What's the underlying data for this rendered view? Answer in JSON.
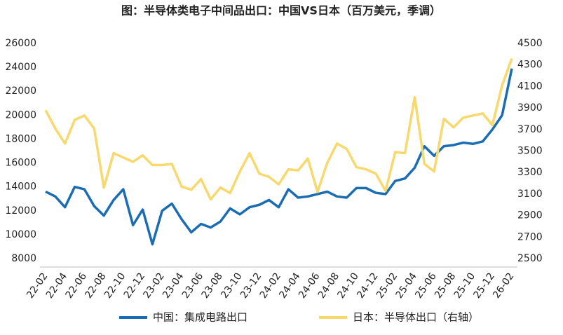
{
  "chart_data": {
    "type": "line",
    "title": "图：半导体类电子中间品出口：中国VS日本（百万美元，季调）",
    "categories": [
      "22-02",
      null,
      "22-04",
      null,
      "22-06",
      null,
      "22-08",
      null,
      "22-10",
      null,
      "22-12",
      null,
      "23-02",
      null,
      "23-04",
      null,
      "23-06",
      null,
      "23-08",
      null,
      "23-10",
      null,
      "23-12",
      null,
      "24-02",
      null,
      "24-04",
      null,
      "24-06",
      null,
      "24-08",
      null,
      "24-10",
      null,
      "24-12",
      null,
      "25-02",
      null,
      "25-04",
      null,
      "25-06",
      null,
      "25-08",
      null,
      "25-10",
      null,
      "25-12",
      null,
      "26-02"
    ],
    "series": [
      {
        "name": "中国：集成电路出口",
        "color": "#1a6db3",
        "axis": "y",
        "values": [
          13600,
          13200,
          12300,
          14000,
          13800,
          12400,
          11600,
          12900,
          13800,
          10800,
          12100,
          9200,
          12000,
          12600,
          11300,
          10200,
          10900,
          10600,
          11100,
          12200,
          11700,
          12300,
          12500,
          12900,
          12300,
          13800,
          13100,
          13200,
          13400,
          13600,
          13200,
          13100,
          13900,
          13900,
          13500,
          13400,
          14500,
          14700,
          15600,
          17400,
          16600,
          17400,
          17500,
          17700,
          17600,
          17800,
          18800,
          20000,
          23900
        ]
      },
      {
        "name": "日本：半导体出口（右轴）",
        "color": "#f7d96e",
        "axis": "y2",
        "values": [
          3880,
          3710,
          3570,
          3790,
          3830,
          3710,
          3160,
          3480,
          3440,
          3400,
          3460,
          3370,
          3370,
          3380,
          3170,
          3140,
          3240,
          3050,
          3160,
          3110,
          3310,
          3480,
          3290,
          3260,
          3190,
          3330,
          3320,
          3430,
          3120,
          3390,
          3570,
          3520,
          3350,
          3330,
          3290,
          3130,
          3490,
          3480,
          4000,
          3380,
          3310,
          3800,
          3720,
          3810,
          3830,
          3850,
          3740,
          4110,
          4360
        ]
      }
    ],
    "ylim": [
      8000,
      26000
    ],
    "yticks": [
      8000,
      10000,
      12000,
      14000,
      16000,
      18000,
      20000,
      22000,
      24000,
      26000
    ],
    "y2lim": [
      2500,
      4500
    ],
    "y2ticks": [
      2500,
      2700,
      2900,
      3100,
      3300,
      3500,
      3700,
      3900,
      4100,
      4300,
      4500
    ],
    "grid": false,
    "legend": "bottom"
  }
}
